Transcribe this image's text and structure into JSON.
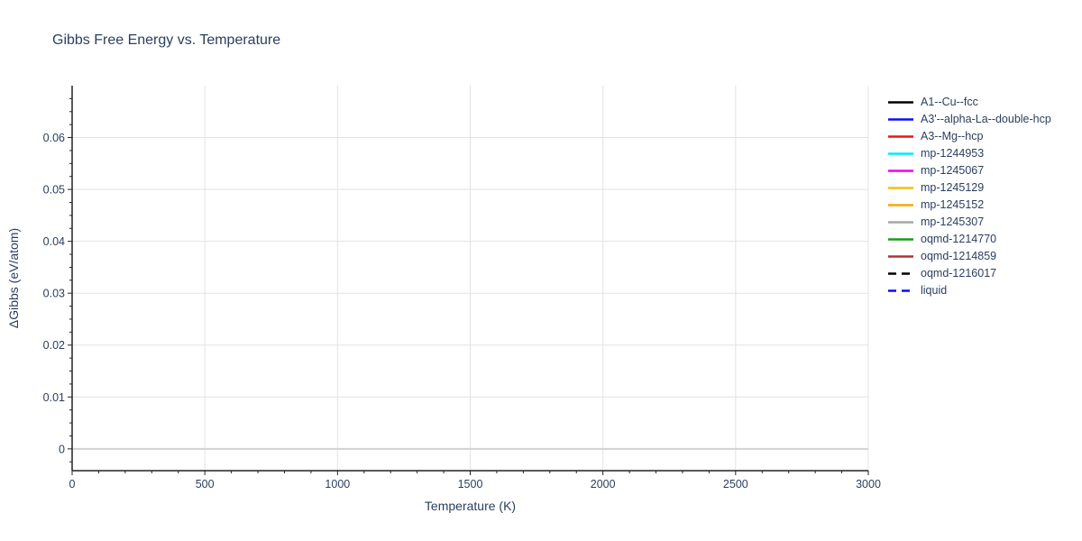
{
  "title": {
    "text": "Gibbs Free Energy vs. Temperature"
  },
  "style": {
    "text_color": "#2a3f5f",
    "grid_color": "#e3e3e3",
    "zeroline_color": "#d2d2d2",
    "axis_color": "#222222",
    "background": "#ffffff"
  },
  "chart_data": {
    "type": "line",
    "title": "Gibbs Free Energy vs. Temperature",
    "xlabel": "Temperature (K)",
    "ylabel": "ΔGibbs (eV/atom)",
    "xlim": [
      0,
      3000
    ],
    "ylim": [
      -0.0042,
      0.07
    ],
    "x_ticks": [
      0,
      500,
      1000,
      1500,
      2000,
      2500,
      3000
    ],
    "x_tick_labels": [
      "0",
      "500",
      "1000",
      "1500",
      "2000",
      "2500",
      "3000"
    ],
    "x_minor_step": 100,
    "y_ticks": [
      0,
      0.01,
      0.02,
      0.03,
      0.04,
      0.05,
      0.06
    ],
    "y_tick_labels": [
      "0",
      "0.01",
      "0.02",
      "0.03",
      "0.04",
      "0.05",
      "0.06"
    ],
    "y_minor_step": 0.0025,
    "grid": true,
    "legend_position": "right-outside",
    "zeroline": {
      "y": 0,
      "x_start": 0,
      "x_end": 3000
    },
    "series": [
      {
        "name": "A1--Cu--fcc",
        "color": "#000000",
        "dash": "solid",
        "x": [],
        "y": []
      },
      {
        "name": "A3'--alpha-La--double-hcp",
        "color": "#0d0df0",
        "dash": "solid",
        "x": [],
        "y": []
      },
      {
        "name": "A3--Mg--hcp",
        "color": "#f01414",
        "dash": "solid",
        "x": [],
        "y": []
      },
      {
        "name": "mp-1244953",
        "color": "#00ecf5",
        "dash": "solid",
        "x": [],
        "y": []
      },
      {
        "name": "mp-1245067",
        "color": "#f000f0",
        "dash": "solid",
        "x": [],
        "y": []
      },
      {
        "name": "mp-1245129",
        "color": "#eec117",
        "dash": "solid",
        "x": [],
        "y": []
      },
      {
        "name": "mp-1245152",
        "color": "#ffa500",
        "dash": "solid",
        "x": [],
        "y": []
      },
      {
        "name": "mp-1245307",
        "color": "#a5a5a5",
        "dash": "solid",
        "x": [],
        "y": []
      },
      {
        "name": "oqmd-1214770",
        "color": "#1d9a1d",
        "dash": "solid",
        "x": [],
        "y": []
      },
      {
        "name": "oqmd-1214859",
        "color": "#b23232",
        "dash": "solid",
        "x": [],
        "y": []
      },
      {
        "name": "oqmd-1216017",
        "color": "#000000",
        "dash": "dash",
        "x": [],
        "y": []
      },
      {
        "name": "liquid",
        "color": "#0d0df0",
        "dash": "dash",
        "x": [],
        "y": []
      }
    ]
  }
}
